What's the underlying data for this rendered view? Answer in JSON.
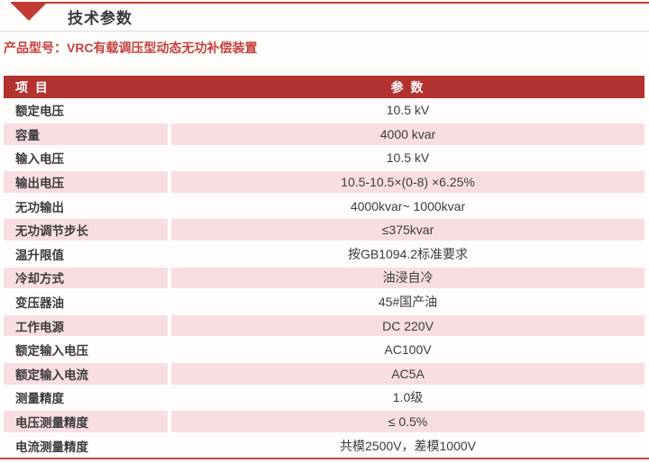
{
  "page": {
    "title": "技术参数",
    "product_model_label": "产品型号：",
    "product_model_value": "VRC有载调压型动态无功补偿装置"
  },
  "table": {
    "headers": {
      "item": "项 目",
      "param": "参 数"
    },
    "rows": [
      {
        "item": "额定电压",
        "value": "10.5 kV"
      },
      {
        "item": "容量",
        "value": "4000 kvar"
      },
      {
        "item": "输入电压",
        "value": "10.5 kV"
      },
      {
        "item": "输出电压",
        "value": "10.5-10.5×(0-8) ×6.25%"
      },
      {
        "item": "无功输出",
        "value": "4000kvar~ 1000kvar"
      },
      {
        "item": "无功调节步长",
        "value": "≤375kvar"
      },
      {
        "item": "温升限值",
        "value": "按GB1094.2标准要求"
      },
      {
        "item": "冷却方式",
        "value": "油浸自冷"
      },
      {
        "item": "变压器油",
        "value": "45#国产油"
      },
      {
        "item": "工作电源",
        "value": "DC 220V"
      },
      {
        "item": "额定输入电压",
        "value": "AC100V"
      },
      {
        "item": "额定输入电流",
        "value": "AC5A"
      },
      {
        "item": "测量精度",
        "value": "1.0级"
      },
      {
        "item": "电压测量精度",
        "value": "≤ 0.5%"
      },
      {
        "item": "电流测量精度",
        "value": "共模2500V，差模1000V"
      }
    ]
  },
  "colors": {
    "header_red": "#b23230",
    "row_pink": "#f8dee1",
    "accent_red": "#c23b31",
    "product_text_red": "#c5403c",
    "bottom_rule_red": "#c74b3b",
    "text_dark": "#3c3c3c"
  }
}
